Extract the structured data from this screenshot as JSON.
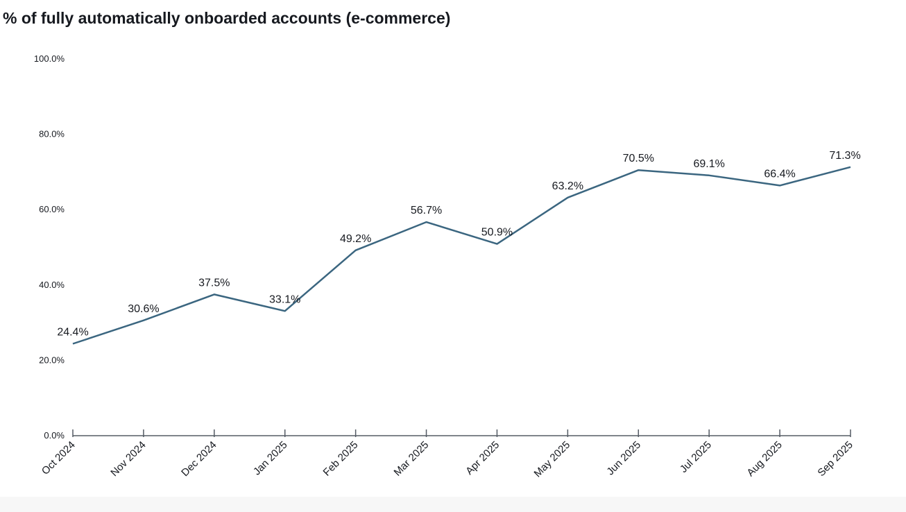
{
  "chart_data": {
    "type": "line",
    "title": "% of fully automatically onboarded accounts (e-commerce)",
    "xlabel": "",
    "ylabel": "",
    "ylim": [
      0,
      100
    ],
    "y_ticks": [
      "0.0%",
      "20.0%",
      "40.0%",
      "60.0%",
      "80.0%",
      "100.0%"
    ],
    "y_tick_values": [
      0,
      20,
      40,
      60,
      80,
      100
    ],
    "categories": [
      "Oct 2024",
      "Nov 2024",
      "Dec 2024",
      "Jan 2025",
      "Feb 2025",
      "Mar 2025",
      "Apr 2025",
      "May 2025",
      "Jun 2025",
      "Jul 2025",
      "Aug 2025",
      "Sep 2025"
    ],
    "series": [
      {
        "name": "% of fully automatically onboarded accounts",
        "values": [
          24.4,
          30.6,
          37.5,
          33.1,
          49.2,
          56.7,
          50.9,
          63.2,
          70.5,
          69.1,
          66.4,
          71.3
        ],
        "labels": [
          "24.4%",
          "30.6%",
          "37.5%",
          "33.1%",
          "49.2%",
          "56.7%",
          "50.9%",
          "63.2%",
          "70.5%",
          "69.1%",
          "66.4%",
          "71.3%"
        ],
        "color": "#3b6680"
      }
    ],
    "grid": false,
    "legend": "none"
  }
}
